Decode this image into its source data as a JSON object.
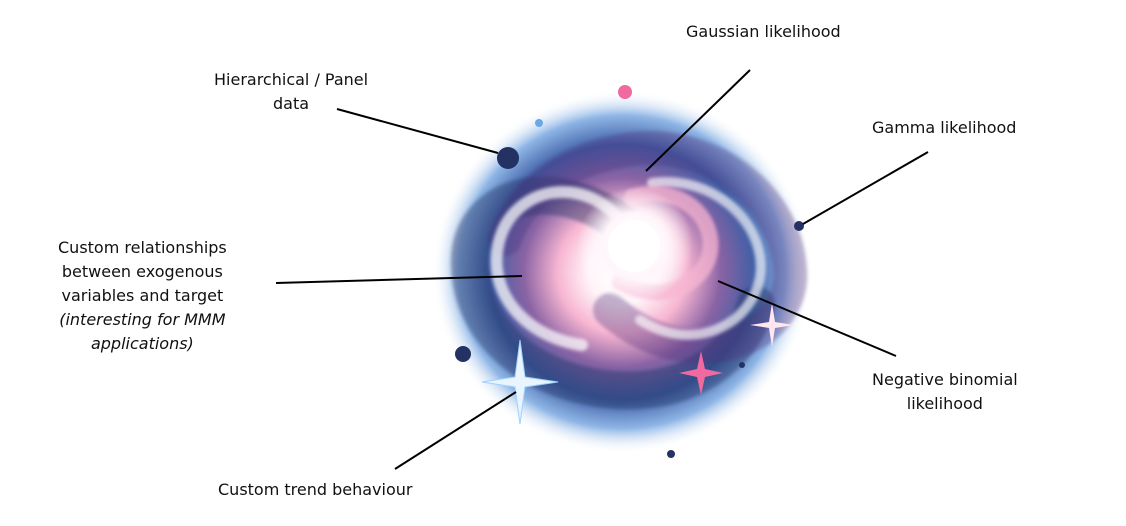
{
  "labels": {
    "gaussian": "Gaussian likelihood",
    "hierarchical_line1": "Hierarchical / Panel",
    "hierarchical_line2": "data",
    "gamma": "Gamma likelihood",
    "custom_line1": "Custom relationships",
    "custom_line2": "between exogenous",
    "custom_line3": "variables and target",
    "custom_line4": "(interesting for MMM",
    "custom_line5": "applications)",
    "negbin_line1": "Negative binomial",
    "negbin_line2": "likelihood",
    "trend": "Custom trend behaviour"
  },
  "colors": {
    "line": "#000000",
    "galaxy_blue": "#3f5fa6",
    "galaxy_navy": "#243263",
    "galaxy_purple": "#6a4a8a",
    "galaxy_pink": "#f06aa0",
    "galaxy_white": "#ffffff"
  },
  "icons": {
    "center": "spiral-galaxy-icon",
    "sparkle": "sparkle-star-icon"
  }
}
